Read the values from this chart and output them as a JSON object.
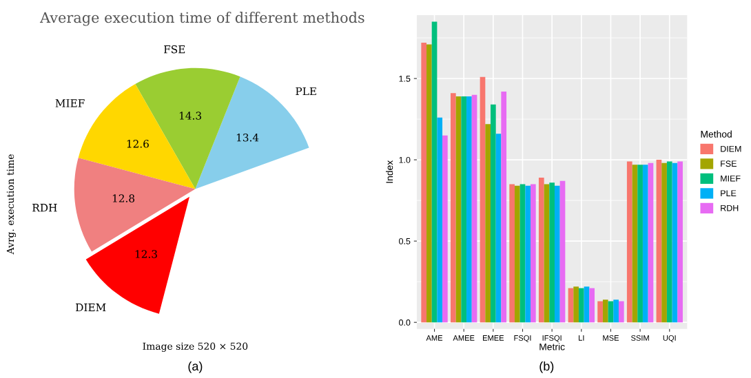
{
  "chart_data": [
    {
      "type": "pie",
      "title": "Average execution time of different methods",
      "ylabel": "Avrg. execution time",
      "xlabel": "Image size 520 × 520",
      "annotations": [
        "(a)"
      ],
      "categories": [
        "PLE",
        "FSE",
        "MIEF",
        "RDH",
        "DIEM"
      ],
      "values": [
        13.4,
        14.3,
        12.6,
        12.8,
        12.3
      ],
      "colors": [
        "#87ceeb",
        "#9acd32",
        "#ffd700",
        "#f08080",
        "#ff0000"
      ],
      "data_labels": true
    },
    {
      "type": "bar",
      "xlabel": "Metric",
      "ylabel": "Index",
      "legend_title": "Method",
      "legend": "right",
      "grid": true,
      "annotations": [
        "(b)"
      ],
      "categories": [
        "AME",
        "AMEE",
        "EMEE",
        "FSQI",
        "IFSQI",
        "LI",
        "MSE",
        "SSIM",
        "UQI"
      ],
      "ylim": [
        -0.04,
        1.89
      ],
      "yticks": [
        {
          "value": 0,
          "label": "0.0"
        },
        {
          "value": 0.5,
          "label": "0.5"
        },
        {
          "value": 1,
          "label": "1.0"
        },
        {
          "value": 1.5,
          "label": "1.5"
        }
      ],
      "series": [
        {
          "name": "DIEM",
          "color": "#f8766d",
          "values": [
            1.72,
            1.41,
            1.51,
            0.85,
            0.89,
            0.21,
            0.13,
            0.99,
            1.0
          ]
        },
        {
          "name": "FSE",
          "color": "#a3a500",
          "values": [
            1.71,
            1.39,
            1.22,
            0.84,
            0.85,
            0.22,
            0.14,
            0.97,
            0.98
          ]
        },
        {
          "name": "MIEF",
          "color": "#00bf7d",
          "values": [
            1.85,
            1.39,
            1.34,
            0.85,
            0.86,
            0.21,
            0.13,
            0.97,
            0.99
          ]
        },
        {
          "name": "PLE",
          "color": "#00b0f6",
          "values": [
            1.26,
            1.39,
            1.16,
            0.84,
            0.84,
            0.22,
            0.14,
            0.97,
            0.98
          ]
        },
        {
          "name": "RDH",
          "color": "#e76bf3",
          "values": [
            1.15,
            1.4,
            1.42,
            0.85,
            0.87,
            0.21,
            0.13,
            0.98,
            0.99
          ]
        }
      ]
    }
  ]
}
